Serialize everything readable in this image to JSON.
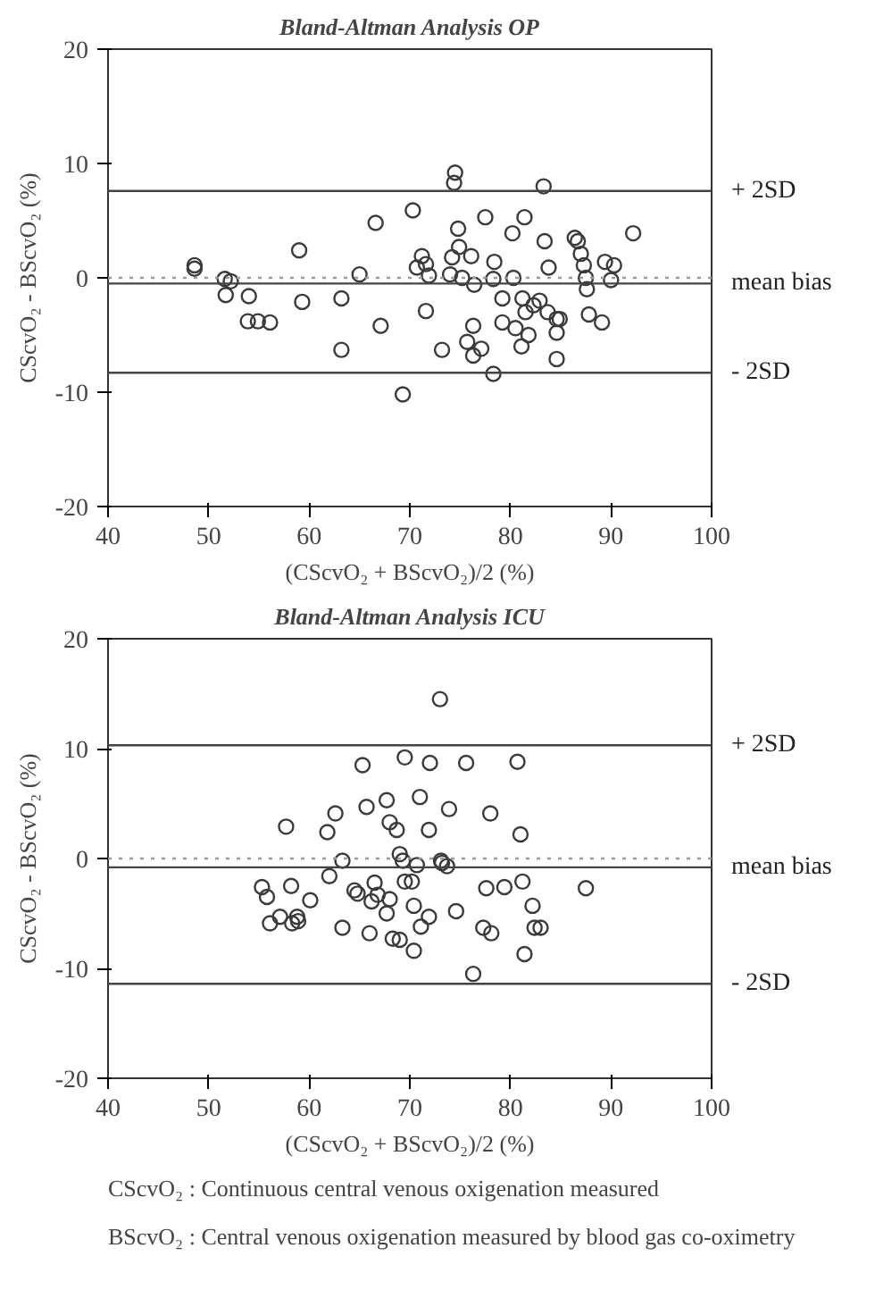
{
  "chart_data": [
    {
      "type": "scatter",
      "title": "Bland-Altman Analysis OP",
      "xlabel": "(CScvO₂ + BScvO₂)/2 (%)",
      "ylabel": "CScvO₂ - BScvO₂ (%)",
      "xlim": [
        40,
        100
      ],
      "ylim": [
        -20,
        20
      ],
      "xticks": [
        40,
        50,
        60,
        70,
        80,
        90,
        100
      ],
      "yticks": [
        -20,
        -10,
        0,
        10,
        20
      ],
      "grid": false,
      "marker": "circle",
      "x": [
        48.6,
        48.6,
        51.6,
        51.7,
        52.2,
        54,
        53.9,
        54.9,
        56.1,
        59,
        59.3,
        63.2,
        63.2,
        65,
        66.6,
        67.1,
        69.3,
        70.3,
        70.7,
        71.2,
        71.6,
        71.9,
        71.6,
        73.2,
        74,
        74.2,
        74.5,
        74.4,
        74.8,
        74.9,
        75.7,
        76.1,
        76.3,
        76.3,
        77.1,
        76.4,
        75.2,
        77.5,
        78.4,
        78.3,
        78.3,
        79.2,
        79.2,
        80.2,
        80.3,
        80.5,
        81.4,
        81.1,
        81.2,
        81.5,
        81.8,
        82.3,
        83.4,
        83.3,
        83.8,
        82.9,
        83.7,
        84.6,
        84.9,
        84.6,
        84.6,
        86.4,
        86.7,
        87,
        87.3,
        87.6,
        87.8,
        89.1,
        89.4,
        90.3,
        90,
        92.2,
        87.5
      ],
      "series": [
        {
          "color": "#3a3a3a",
          "values": [
            1.1,
            0.8,
            -0.1,
            -1.5,
            -0.3,
            -1.6,
            -3.8,
            -3.8,
            -3.9,
            2.4,
            -2.1,
            -1.8,
            -6.3,
            0.3,
            4.8,
            -4.2,
            -10.2,
            5.9,
            0.9,
            1.9,
            1.2,
            0.2,
            -2.9,
            -6.3,
            0.3,
            1.8,
            9.2,
            8.3,
            4.3,
            2.7,
            -5.6,
            1.9,
            -4.2,
            -6.8,
            -6.2,
            -0.6,
            0,
            5.3,
            1.4,
            -8.4,
            -0.1,
            -1.8,
            -3.9,
            3.9,
            0,
            -4.4,
            5.3,
            -6,
            -1.8,
            -3,
            -5,
            -2.4,
            3.2,
            8,
            0.9,
            -2,
            -3,
            -3.6,
            -3.6,
            -4.8,
            -7.1,
            3.5,
            3.2,
            2.1,
            1.1,
            -1,
            -3.2,
            -3.9,
            1.4,
            1.1,
            -0.2,
            3.9,
            0
          ]
        }
      ],
      "ref_lines": [
        {
          "axis": "y",
          "value": 7.6,
          "label": "+ 2SD",
          "color": "#444444",
          "line_style": "solid"
        },
        {
          "axis": "y",
          "value": 0,
          "label": null,
          "color": "#999999",
          "line_style": "dotted"
        },
        {
          "axis": "y",
          "value": -0.5,
          "label": "mean bias",
          "color": "#444444",
          "line_style": "solid"
        },
        {
          "axis": "y",
          "value": -8.3,
          "label": "- 2SD",
          "color": "#444444",
          "line_style": "solid"
        }
      ]
    },
    {
      "type": "scatter",
      "title": "Bland-Altman Analysis ICU",
      "xlabel": "(CScvO₂ + BScvO₂)/2 (%)",
      "ylabel": "CScvO₂ - BScvO₂ (%)",
      "xlim": [
        40,
        100
      ],
      "ylim": [
        -20,
        20
      ],
      "xticks": [
        40,
        50,
        60,
        70,
        80,
        90,
        100
      ],
      "yticks": [
        -20,
        -10,
        0,
        10,
        20
      ],
      "grid": false,
      "marker": "circle",
      "x": [
        73,
        65.3,
        69.5,
        72,
        75.6,
        80.7,
        65.7,
        67.7,
        71,
        73.9,
        78,
        62.6,
        61.8,
        57.7,
        68,
        68.7,
        71.9,
        81,
        63.3,
        69,
        69.3,
        73.1,
        73.7,
        70.7,
        62,
        55.3,
        55.8,
        58.2,
        60.1,
        64.5,
        64.8,
        66.5,
        66.8,
        66.2,
        68,
        67.7,
        69.5,
        70.2,
        70.4,
        73.2,
        56.1,
        57.1,
        58.3,
        58.8,
        58.9,
        63.3,
        66,
        68.3,
        69,
        70.4,
        71.1,
        71.9,
        74.6,
        77.6,
        79.4,
        81.2,
        82.2,
        82.4,
        83,
        77.3,
        78.1,
        81.4,
        76.3,
        87.5
      ],
      "series": [
        {
          "color": "#3a3a3a",
          "values": [
            14.5,
            8.5,
            9.2,
            8.7,
            8.7,
            8.8,
            4.7,
            5.3,
            5.6,
            4.5,
            4.1,
            4.1,
            2.4,
            2.9,
            3.3,
            2.6,
            2.6,
            2.2,
            -0.2,
            0.4,
            -0.2,
            -0.2,
            -0.7,
            -0.6,
            -1.6,
            -2.6,
            -3.5,
            -2.5,
            -3.8,
            -2.9,
            -3.2,
            -2.2,
            -3.3,
            -3.9,
            -3.7,
            -5,
            -2.1,
            -2.1,
            -4.3,
            -0.4,
            -5.9,
            -5.3,
            -5.9,
            -5.3,
            -5.7,
            -6.3,
            -6.8,
            -7.3,
            -7.4,
            -8.4,
            -6.2,
            -5.3,
            -4.8,
            -2.7,
            -2.6,
            -2.1,
            -4.3,
            -6.3,
            -6.3,
            -6.3,
            -6.8,
            -8.7,
            -10.5,
            -2.7
          ]
        }
      ],
      "ref_lines": [
        {
          "axis": "y",
          "value": 10.3,
          "label": "+ 2SD",
          "color": "#444444",
          "line_style": "solid"
        },
        {
          "axis": "y",
          "value": 0,
          "label": null,
          "color": "#999999",
          "line_style": "dotted"
        },
        {
          "axis": "y",
          "value": -0.8,
          "label": "mean bias",
          "color": "#444444",
          "line_style": "solid"
        },
        {
          "axis": "y",
          "value": -11.4,
          "label": "- 2SD",
          "color": "#444444",
          "line_style": "solid"
        }
      ],
      "annotations": [
        "CScvO₂ : Continuous central venous oxigenation measured",
        "BScvO₂ : Central venous oxigenation measured by blood gas co-oximetry"
      ]
    }
  ]
}
